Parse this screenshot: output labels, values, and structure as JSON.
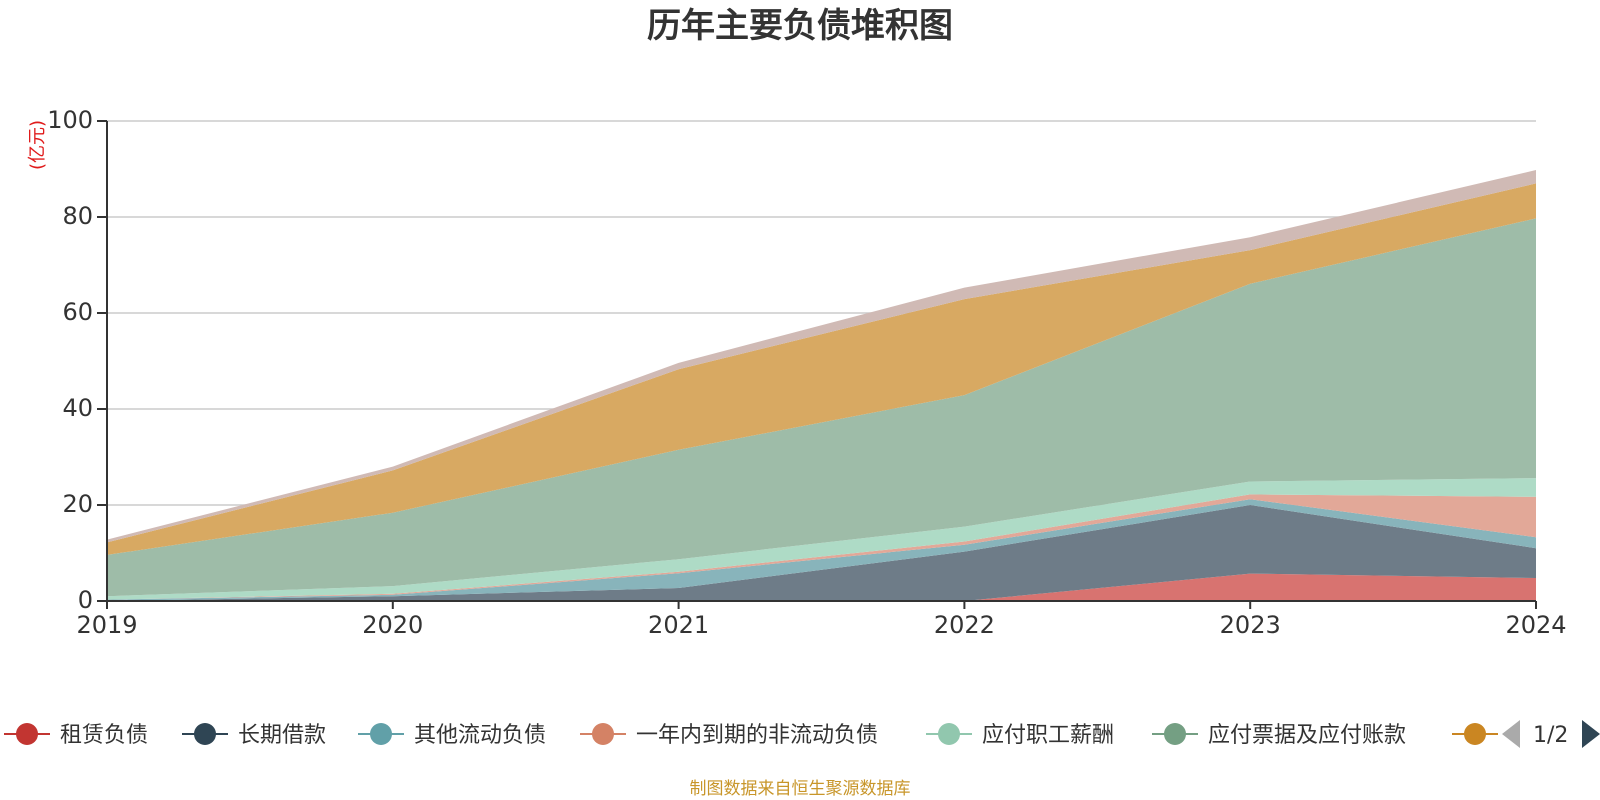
{
  "chart_data": {
    "type": "area",
    "stacked": true,
    "title": "历年主要负债堆积图",
    "unit_label": "(亿元)",
    "x": [
      "2019",
      "2020",
      "2021",
      "2022",
      "2023",
      "2024"
    ],
    "ylim": [
      0,
      100
    ],
    "yticks": [
      "0",
      "20",
      "40",
      "60",
      "80",
      "100"
    ],
    "grid": true,
    "series": [
      {
        "name": "租赁负债",
        "color": "#c23531",
        "area_color": "#d87370",
        "values": [
          0,
          0,
          0,
          0,
          5.7,
          4.8
        ]
      },
      {
        "name": "长期借款",
        "color": "#2f4554",
        "area_color": "#6e7c88",
        "values": [
          0,
          1.0,
          2.7,
          10.3,
          14.3,
          6.2
        ]
      },
      {
        "name": "其他流动负债",
        "color": "#61a0a8",
        "area_color": "#88b4bb",
        "values": [
          0.3,
          0.3,
          3.1,
          1.4,
          1.2,
          2.3
        ]
      },
      {
        "name": "一年内到期的非流动负债",
        "color": "#d48265",
        "area_color": "#e2a898",
        "values": [
          0,
          0.2,
          0.3,
          0.7,
          1.0,
          8.4
        ]
      },
      {
        "name": "应付职工薪酬",
        "color": "#91c7ae",
        "area_color": "#aedbc6",
        "values": [
          0.7,
          1.6,
          2.6,
          3.1,
          2.7,
          3.9
        ]
      },
      {
        "name": "应付票据及应付账款",
        "color": "#749f83",
        "area_color": "#9ebca8",
        "values": [
          8.6,
          15.3,
          22.8,
          27.4,
          41.2,
          54.1
        ]
      },
      {
        "name": "",
        "color": "#ca8622",
        "area_color": "#d8a962",
        "values": [
          2.6,
          8.8,
          16.8,
          20.0,
          7.0,
          7.3
        ]
      },
      {
        "name": "",
        "color": "#bda29a",
        "area_color": "#d0bab5",
        "values": [
          0.6,
          0.8,
          1.3,
          2.4,
          2.7,
          2.8
        ]
      }
    ],
    "legend": {
      "position": "bottom",
      "page": "1/2"
    },
    "source": "制图数据来自恒生聚源数据库"
  }
}
